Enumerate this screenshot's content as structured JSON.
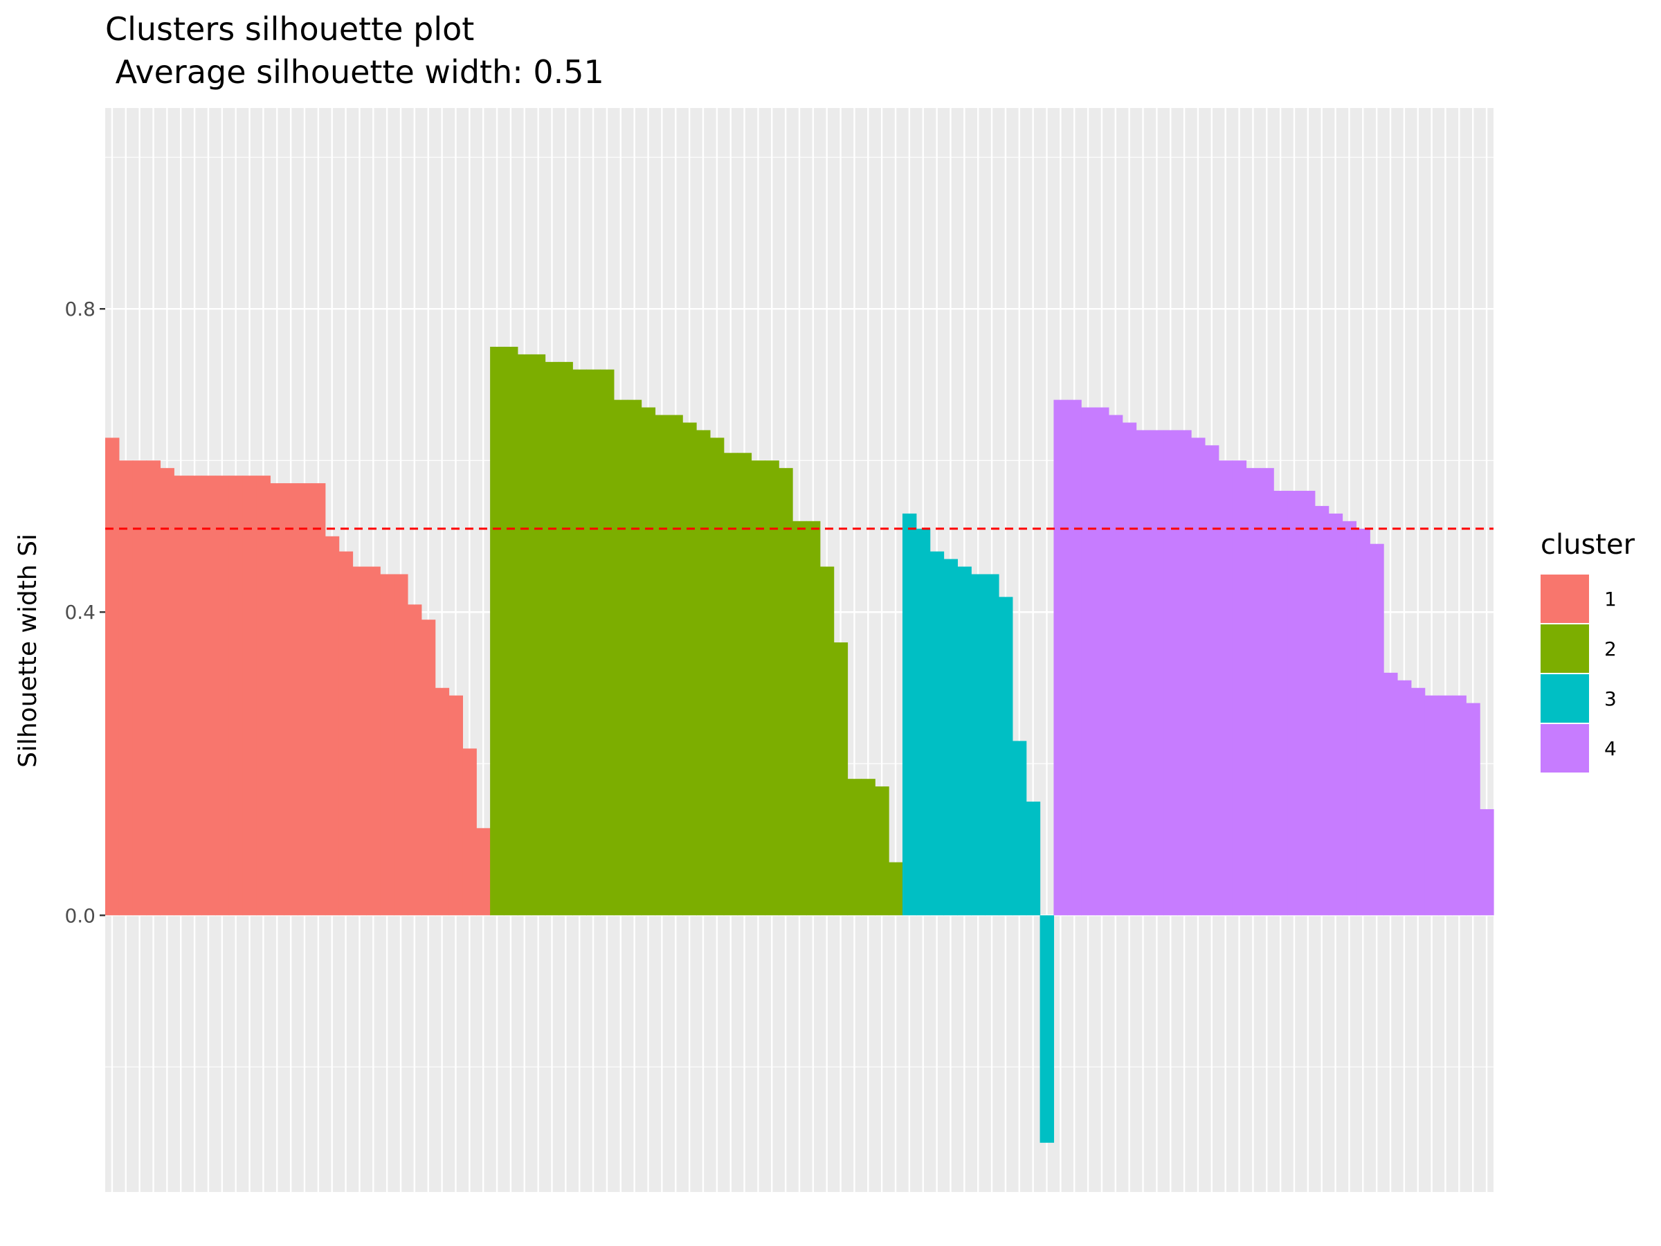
{
  "chart_data": {
    "type": "bar",
    "title": "Clusters silhouette plot",
    "subtitle": " Average silhouette width: 0.51",
    "xlabel": "",
    "ylabel": "Silhouette width Si",
    "ylim": [
      -0.3,
      1.0
    ],
    "y_ticks": [
      0.0,
      0.4,
      0.8
    ],
    "y_tick_labels": [
      "0.0",
      "0.4",
      "0.8"
    ],
    "average_width": 0.51,
    "reference_line_color": "#ff0000",
    "grid": true,
    "legend": {
      "title": "cluster",
      "placement": "right",
      "entries": [
        {
          "label": "1",
          "color": "#f8766d"
        },
        {
          "label": "2",
          "color": "#7cae00"
        },
        {
          "label": "3",
          "color": "#00bfc4"
        },
        {
          "label": "4",
          "color": "#c77cff"
        }
      ]
    },
    "series": [
      {
        "name": "1",
        "color": "#f8766d",
        "values": [
          0.63,
          0.6,
          0.6,
          0.6,
          0.59,
          0.58,
          0.58,
          0.58,
          0.58,
          0.58,
          0.58,
          0.58,
          0.57,
          0.57,
          0.57,
          0.57,
          0.5,
          0.48,
          0.46,
          0.46,
          0.45,
          0.45,
          0.41,
          0.39,
          0.3,
          0.29,
          0.22,
          0.115
        ]
      },
      {
        "name": "2",
        "color": "#7cae00",
        "values": [
          0.75,
          0.75,
          0.74,
          0.74,
          0.73,
          0.73,
          0.72,
          0.72,
          0.72,
          0.68,
          0.68,
          0.67,
          0.66,
          0.66,
          0.65,
          0.64,
          0.63,
          0.61,
          0.61,
          0.6,
          0.6,
          0.59,
          0.52,
          0.52,
          0.46,
          0.36,
          0.18,
          0.18,
          0.17,
          0.07
        ]
      },
      {
        "name": "3",
        "color": "#00bfc4",
        "values": [
          0.53,
          0.51,
          0.48,
          0.47,
          0.46,
          0.45,
          0.45,
          0.42,
          0.23,
          0.15,
          -0.3
        ]
      },
      {
        "name": "4",
        "color": "#c77cff",
        "values": [
          0.68,
          0.68,
          0.67,
          0.67,
          0.66,
          0.65,
          0.64,
          0.64,
          0.64,
          0.64,
          0.63,
          0.62,
          0.6,
          0.6,
          0.59,
          0.59,
          0.56,
          0.56,
          0.56,
          0.54,
          0.53,
          0.52,
          0.51,
          0.49,
          0.32,
          0.31,
          0.3,
          0.29,
          0.29,
          0.29,
          0.28,
          0.14
        ]
      }
    ]
  }
}
